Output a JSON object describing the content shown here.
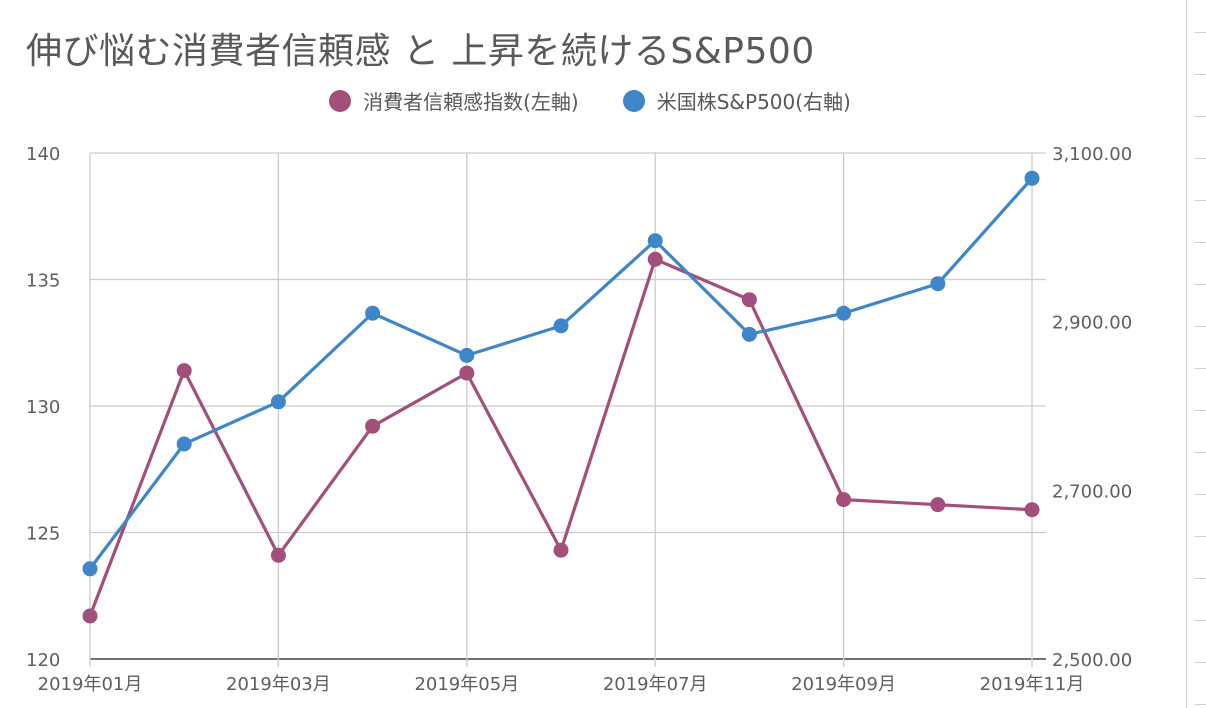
{
  "title": "伸び悩む消費者信頼感 と 上昇を続けるS&P500",
  "legend": [
    {
      "name": "消費者信頼感指数(左軸)",
      "color": "#a34f7b"
    },
    {
      "name": "米国株S&P500(右軸)",
      "color": "#3f86c8"
    }
  ],
  "chart_data": {
    "type": "line",
    "categories": [
      "2019年01月",
      "2019年02月",
      "2019年03月",
      "2019年04月",
      "2019年05月",
      "2019年06月",
      "2019年07月",
      "2019年08月",
      "2019年09月",
      "2019年10月",
      "2019年11月"
    ],
    "x_tick_labels": [
      "2019年01月",
      "2019年03月",
      "2019年05月",
      "2019年07月",
      "2019年09月",
      "2019年11月"
    ],
    "left_axis": {
      "ylim": [
        120,
        140
      ],
      "ticks": [
        "120",
        "125",
        "130",
        "135",
        "140"
      ]
    },
    "right_axis": {
      "ylim": [
        2500,
        3100
      ],
      "ticks": [
        "2,500.00",
        "2,700.00",
        "2,900.00",
        "3,100.00"
      ]
    },
    "series": [
      {
        "name": "消費者信頼感指数(左軸)",
        "axis": "left",
        "color": "#a34f7b",
        "values": [
          121.7,
          131.4,
          124.1,
          129.2,
          131.3,
          124.3,
          135.8,
          134.2,
          126.3,
          126.1,
          125.9
        ]
      },
      {
        "name": "米国株S&P500(右軸)",
        "axis": "right",
        "color": "#3f86c8",
        "values": [
          2607,
          2755,
          2805,
          2910,
          2860,
          2895,
          2996,
          2885,
          2910,
          2945,
          3070
        ]
      }
    ],
    "grid": true,
    "legend_position": "top-center"
  }
}
